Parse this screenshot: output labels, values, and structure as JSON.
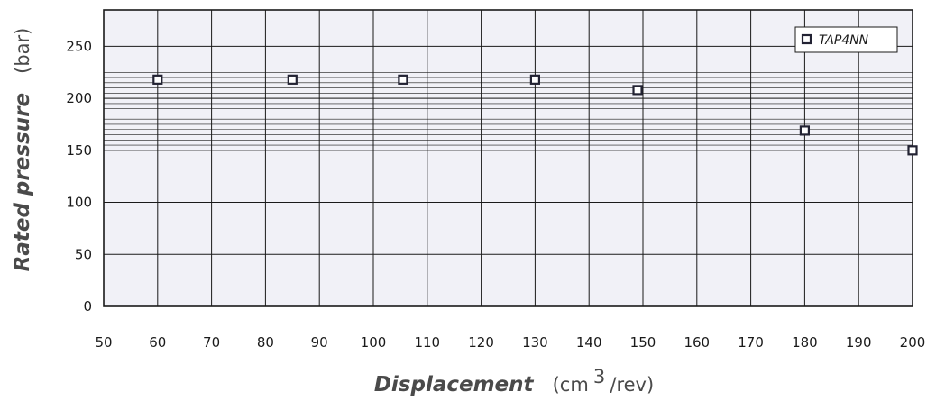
{
  "chart_data": {
    "type": "scatter",
    "title": "",
    "xlabel": "Displacement",
    "xlabel_unit_prefix": "(cm",
    "xlabel_unit_sup": "3",
    "xlabel_unit_suffix": "/rev)",
    "ylabel": "Rated pressure",
    "ylabel_unit": "(bar)",
    "xlim": [
      50,
      200
    ],
    "ylim": [
      0,
      285
    ],
    "x_ticks": [
      50,
      60,
      70,
      80,
      90,
      100,
      110,
      120,
      130,
      140,
      150,
      160,
      170,
      180,
      190,
      200
    ],
    "y_ticks": [
      0,
      50,
      100,
      150,
      200,
      250
    ],
    "minor_y_lines": {
      "from": 155,
      "to": 225,
      "step": 5
    },
    "grid": true,
    "legend_position": "top-right",
    "series": [
      {
        "name": "TAP4NN",
        "marker": "square",
        "points": [
          {
            "x": 60,
            "y": 218
          },
          {
            "x": 85,
            "y": 218
          },
          {
            "x": 105.5,
            "y": 218
          },
          {
            "x": 130,
            "y": 218
          },
          {
            "x": 149,
            "y": 208
          },
          {
            "x": 180,
            "y": 169
          },
          {
            "x": 200,
            "y": 150
          }
        ]
      }
    ],
    "colors": {
      "plot_background": "#f1f1f7",
      "grid_major": "#1a1a1a",
      "grid_minor": "#1a1a1a",
      "marker_fill": "#ffffff",
      "marker_stroke": "#222233"
    }
  }
}
